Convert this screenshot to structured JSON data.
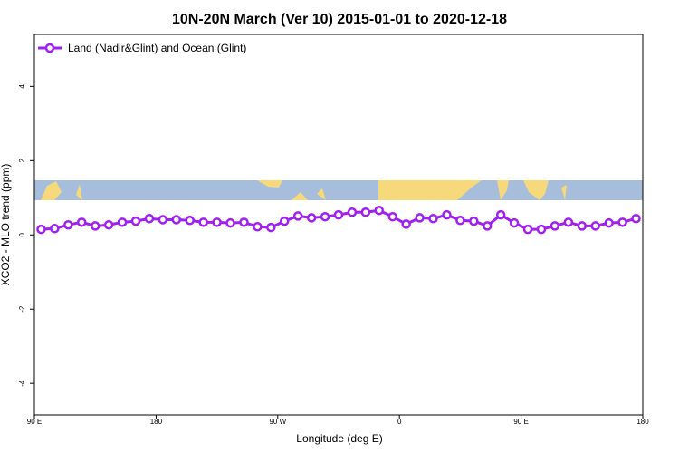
{
  "chart_data": {
    "type": "line",
    "title": "10N-20N March (Ver 10)   2015-01-01 to 2020-12-18",
    "x_label": "Longitude (deg E)",
    "y_label": "XCO2 - MLO trend (ppm)",
    "x": [
      95,
      105,
      115,
      125,
      135,
      145,
      155,
      165,
      175,
      185,
      195,
      205,
      215,
      225,
      235,
      245,
      255,
      265,
      275,
      285,
      295,
      305,
      315,
      325,
      335,
      345,
      355,
      365,
      375,
      385,
      395,
      405,
      415,
      425,
      435,
      445,
      455,
      465,
      475,
      485,
      495,
      505,
      515,
      525,
      535
    ],
    "series": [
      {
        "name": "Land (Nadir&Glint) and Ocean (Glint)",
        "color": "#a020f0",
        "values": [
          0.15,
          0.17,
          0.27,
          0.34,
          0.24,
          0.27,
          0.34,
          0.37,
          0.44,
          0.41,
          0.41,
          0.39,
          0.34,
          0.34,
          0.32,
          0.34,
          0.22,
          0.2,
          0.37,
          0.51,
          0.46,
          0.49,
          0.54,
          0.61,
          0.61,
          0.66,
          0.49,
          0.29,
          0.46,
          0.44,
          0.54,
          0.39,
          0.37,
          0.24,
          0.54,
          0.32,
          0.15,
          0.15,
          0.24,
          0.34,
          0.24,
          0.24,
          0.32,
          0.34,
          0.44
        ]
      }
    ],
    "xlim": [
      90,
      540
    ],
    "xticks": [
      {
        "value": 90,
        "label": "90 E"
      },
      180,
      {
        "value": 270,
        "label": "90 W"
      },
      {
        "value": 360,
        "label": "0"
      },
      {
        "value": 450,
        "label": "90 E"
      },
      {
        "value": 540,
        "label": "180"
      }
    ],
    "ylim": [
      -4.85,
      5.4
    ],
    "yticks": [
      -4,
      -2,
      0,
      2,
      4
    ],
    "legend": "top-left"
  }
}
